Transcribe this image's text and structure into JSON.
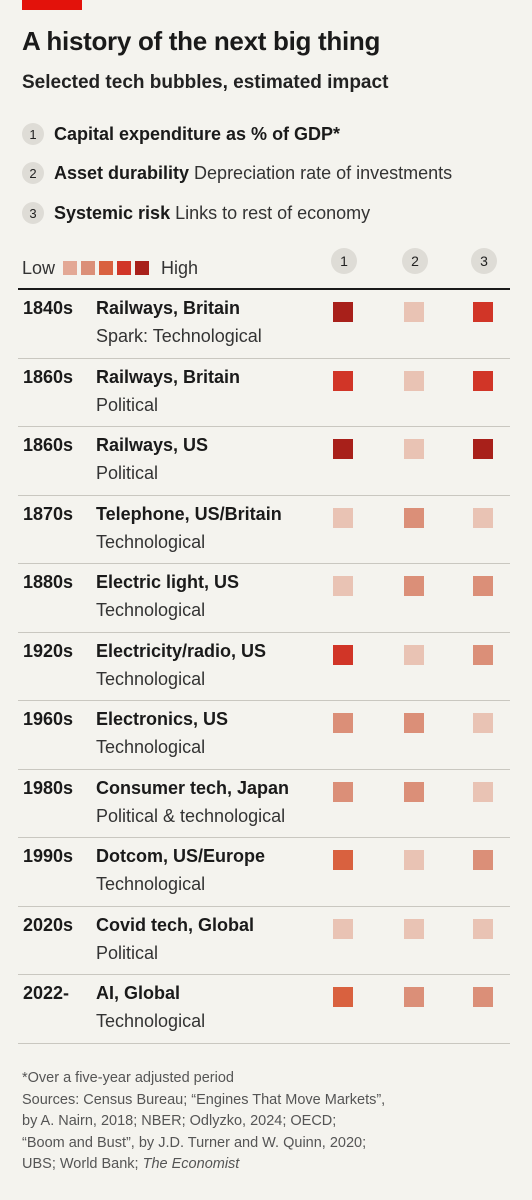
{
  "colors": {
    "accent": "#e3120b",
    "levels": [
      "#e9c3b4",
      "#e3a895",
      "#db8f78",
      "#d9613f",
      "#d13527",
      "#a8201a"
    ]
  },
  "title": "A history of the next big thing",
  "subtitle": "Selected tech bubbles, estimated impact",
  "key": [
    {
      "num": "1",
      "name": "Capital expenditure as % of GDP*",
      "desc": ""
    },
    {
      "num": "2",
      "name": "Asset durability",
      "desc": "Depreciation rate of investments"
    },
    {
      "num": "3",
      "name": "Systemic risk",
      "desc": "Links to rest of economy"
    }
  ],
  "legend": {
    "low": "Low",
    "high": "High",
    "levels": [
      1,
      2,
      3,
      4,
      5
    ]
  },
  "columns": [
    "1",
    "2",
    "3"
  ],
  "chart_data": {
    "type": "heatmap",
    "scale": "ordinal, 1 = Low to 5 = High",
    "columns": [
      "Capital expenditure as % of GDP*",
      "Asset durability",
      "Systemic risk"
    ],
    "rows": [
      {
        "decade": "1840s",
        "name": "Railways, Britain",
        "spark": "Spark: Technological",
        "values": [
          5,
          0,
          4
        ]
      },
      {
        "decade": "1860s",
        "name": "Railways, Britain",
        "spark": "Political",
        "values": [
          4,
          0,
          4
        ]
      },
      {
        "decade": "1860s",
        "name": "Railways, US",
        "spark": "Political",
        "values": [
          5,
          0,
          5
        ]
      },
      {
        "decade": "1870s",
        "name": "Telephone, US/Britain",
        "spark": "Technological",
        "values": [
          0,
          2,
          0
        ]
      },
      {
        "decade": "1880s",
        "name": "Electric light, US",
        "spark": "Technological",
        "values": [
          0,
          2,
          2
        ]
      },
      {
        "decade": "1920s",
        "name": "Electricity/radio, US",
        "spark": "Technological",
        "values": [
          4,
          0,
          2
        ]
      },
      {
        "decade": "1960s",
        "name": "Electronics, US",
        "spark": "Technological",
        "values": [
          2,
          2,
          0
        ]
      },
      {
        "decade": "1980s",
        "name": "Consumer tech, Japan",
        "spark": "Political & technological",
        "values": [
          2,
          2,
          0
        ]
      },
      {
        "decade": "1990s",
        "name": "Dotcom, US/Europe",
        "spark": "Technological",
        "values": [
          3,
          0,
          2
        ]
      },
      {
        "decade": "2020s",
        "name": "Covid tech, Global",
        "spark": "Political",
        "values": [
          0,
          0,
          0
        ]
      },
      {
        "decade": "2022-",
        "name": "AI, Global",
        "spark": "Technological",
        "values": [
          3,
          2,
          2
        ]
      }
    ]
  },
  "footer": {
    "note": "*Over a five-year adjusted period",
    "sources_1": "Sources: Census Bureau; “Engines That Move Markets”,",
    "sources_2": "by A. Nairn, 2018; NBER; Odlyzko, 2024; OECD;",
    "sources_3": "“Boom and Bust”, by J.D. Turner and W. Quinn, 2020;",
    "sources_4": "UBS; World Bank;",
    "sources_italic": "The Economist"
  }
}
